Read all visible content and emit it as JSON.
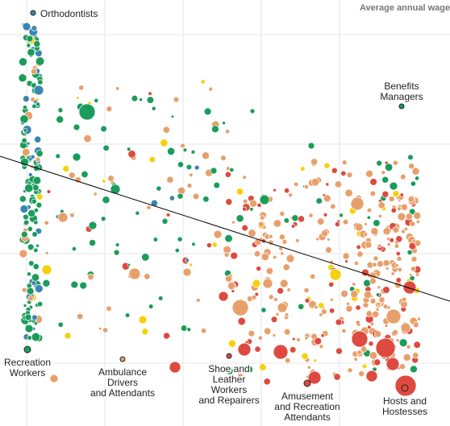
{
  "chart_data": {
    "type": "scatter",
    "title": "",
    "ylabel": "Average annual wage",
    "xlabel": "",
    "grid": true,
    "category_colors": {
      "blue": "#3a85b0",
      "green": "#1a9c5b",
      "yellow": "#f5d10c",
      "orange": "#e8a06b",
      "red": "#de4a3f"
    },
    "trend_line": {
      "color": "#000000"
    },
    "annotations": [
      {
        "id": "orthodontists",
        "lines": [
          "Orthodontists"
        ],
        "color": "blue"
      },
      {
        "id": "benefits-managers",
        "lines": [
          "Benefits",
          "Managers"
        ],
        "color": "green"
      },
      {
        "id": "recreation-workers",
        "lines": [
          "Recreation",
          "Workers"
        ],
        "color": "green"
      },
      {
        "id": "ambulance-drivers",
        "lines": [
          "Ambulance",
          "Drivers",
          "and Attendants"
        ],
        "color": "orange"
      },
      {
        "id": "shoe-leather-workers",
        "lines": [
          "Shoe and",
          "Leather",
          "Workers",
          "and Repairers"
        ],
        "color": "red"
      },
      {
        "id": "amusement-attendants",
        "lines": [
          "Amusement",
          "and Recreation",
          "Attendants"
        ],
        "color": "red"
      },
      {
        "id": "hosts-hostesses",
        "lines": [
          "Hosts and",
          "Hostesses"
        ],
        "color": "red"
      }
    ]
  }
}
